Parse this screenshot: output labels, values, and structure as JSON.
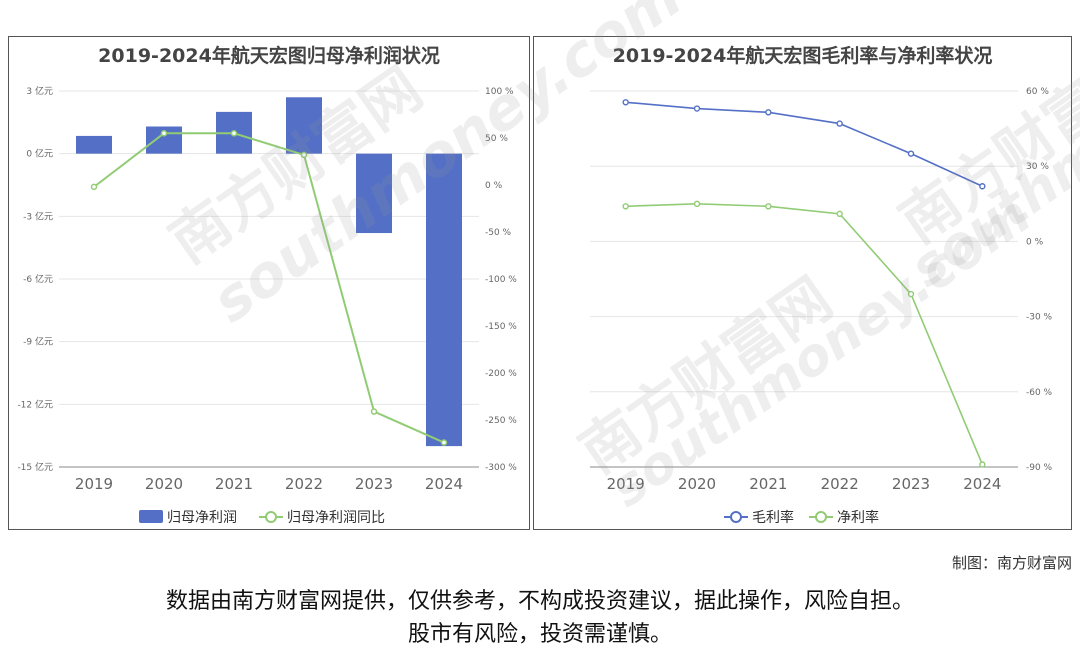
{
  "chart_data": [
    {
      "type": "bar",
      "title": "2019-2024年航天宏图归母净利润状况",
      "categories": [
        "2019",
        "2020",
        "2021",
        "2022",
        "2023",
        "2024"
      ],
      "series": [
        {
          "name": "归母净利润",
          "kind": "bar",
          "axis": "left",
          "unit": "亿元",
          "values": [
            0.85,
            1.3,
            2.0,
            2.7,
            -3.8,
            -14.0
          ],
          "color": "#5470c6"
        },
        {
          "name": "归母净利润同比",
          "kind": "line",
          "axis": "right",
          "unit": "%",
          "values": [
            -2,
            55,
            55,
            32,
            -241,
            -274
          ],
          "color": "#91cc75"
        }
      ],
      "y_left": {
        "ticks": [
          "3 亿元",
          "0 亿元",
          "-3 亿元",
          "-6 亿元",
          "-9 亿元",
          "-12 亿元",
          "-15 亿元"
        ],
        "ylim": [
          -15,
          3
        ]
      },
      "y_right": {
        "ticks": [
          "100 %",
          "50 %",
          "0 %",
          "-50 %",
          "-100 %",
          "-150 %",
          "-200 %",
          "-250 %",
          "-300 %"
        ],
        "ylim": [
          -300,
          100
        ]
      },
      "legend_position": "bottom"
    },
    {
      "type": "line",
      "title": "2019-2024年航天宏图毛利率与净利率状况",
      "categories": [
        "2019",
        "2020",
        "2021",
        "2022",
        "2023",
        "2024"
      ],
      "series": [
        {
          "name": "毛利率",
          "unit": "%",
          "values": [
            55.5,
            53,
            51.5,
            47,
            35,
            22
          ],
          "color": "#5470c6"
        },
        {
          "name": "净利率",
          "unit": "%",
          "values": [
            14,
            15,
            14,
            11,
            -21,
            -89
          ],
          "color": "#91cc75"
        }
      ],
      "y_right": {
        "ticks": [
          "60 %",
          "30 %",
          "0 %",
          "-30 %",
          "-60 %",
          "-90 %"
        ],
        "ylim": [
          -90,
          60
        ]
      },
      "legend_position": "bottom"
    }
  ],
  "watermark": {
    "name": "南方财富网",
    "domain": "southmoney.com"
  },
  "credit": "制图：南方财富网",
  "disclaimer_line1": "数据由南方财富网提供，仅供参考，不构成投资建议，据此操作，风险自担。",
  "disclaimer_line2": "股市有风险，投资需谨慎。"
}
